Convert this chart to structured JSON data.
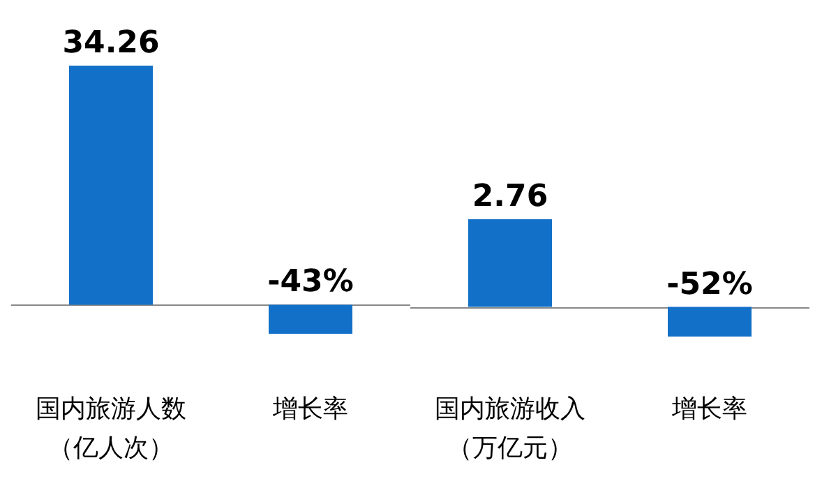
{
  "chart_data": [
    {
      "type": "bar",
      "categories": [
        "国内旅游人数（亿人次）",
        "增长率"
      ],
      "series": [
        {
          "color": "#1270c8",
          "values": [
            34.26,
            null
          ],
          "value_labels": [
            "34.26",
            null
          ]
        },
        {
          "color": "#1270c8",
          "axis": "y2",
          "values": [
            null,
            -43
          ],
          "value_labels": [
            null,
            "-43%"
          ]
        }
      ],
      "tick_labels": "x"
    },
    {
      "type": "bar",
      "categories": [
        "国内旅游收入（万亿元）",
        "增长率"
      ],
      "series": [
        {
          "color": "#1270c8",
          "values": [
            2.76,
            null
          ],
          "value_labels": [
            "2.76",
            null
          ]
        },
        {
          "color": "#1270c8",
          "axis": "y2",
          "values": [
            null,
            -52
          ],
          "value_labels": [
            null,
            "-52%"
          ]
        }
      ],
      "tick_labels": "x"
    }
  ]
}
